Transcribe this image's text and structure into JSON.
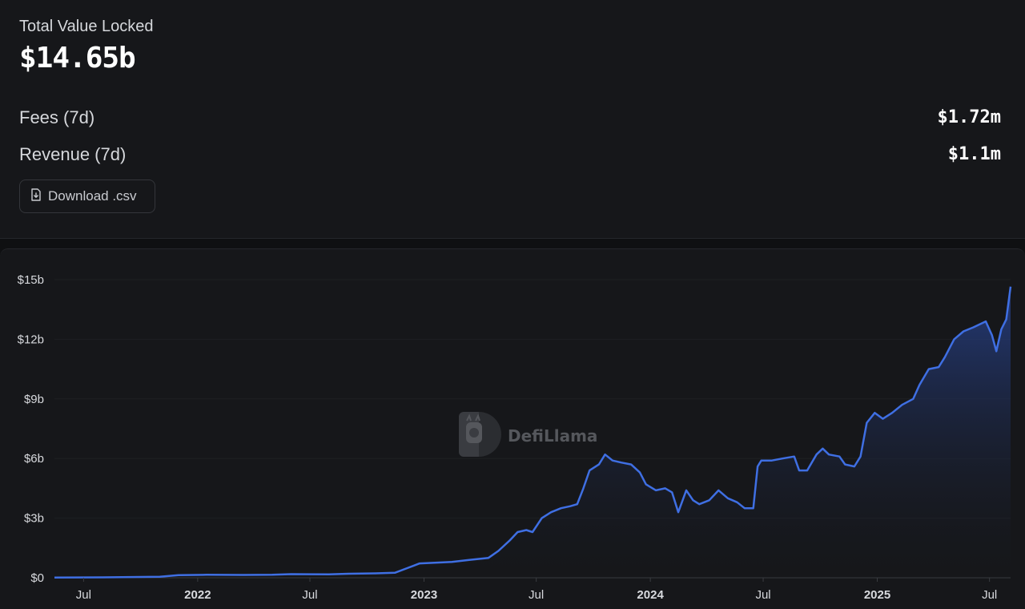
{
  "stats": {
    "tvl_label": "Total Value Locked",
    "tvl_value": "$14.65b",
    "fees_label": "Fees (7d)",
    "fees_value": "$1.72m",
    "revenue_label": "Revenue (7d)",
    "revenue_value": "$1.1m"
  },
  "download": {
    "label": "Download .csv",
    "icon": "file-download-icon"
  },
  "watermark": {
    "text": "DefiLlama"
  },
  "colors": {
    "line": "#3f6fe3",
    "fill_top": "#27418a",
    "fill_bottom": "#16171a",
    "background": "#16171a"
  },
  "chart_data": {
    "type": "area",
    "title": "",
    "xlabel": "",
    "ylabel": "",
    "ylim": [
      0,
      15
    ],
    "y_unit": "billion USD",
    "y_ticks": [
      {
        "value": 0,
        "label": "$0"
      },
      {
        "value": 3,
        "label": "$3b"
      },
      {
        "value": 6,
        "label": "$6b"
      },
      {
        "value": 9,
        "label": "$9b"
      },
      {
        "value": 12,
        "label": "$12b"
      },
      {
        "value": 15,
        "label": "$15b"
      }
    ],
    "x_ticks": [
      {
        "date": "2021-07-01",
        "label": "Jul",
        "major": false
      },
      {
        "date": "2022-01-01",
        "label": "2022",
        "major": true
      },
      {
        "date": "2022-07-01",
        "label": "Jul",
        "major": false
      },
      {
        "date": "2023-01-01",
        "label": "2023",
        "major": true
      },
      {
        "date": "2023-07-01",
        "label": "Jul",
        "major": false
      },
      {
        "date": "2024-01-01",
        "label": "2024",
        "major": true
      },
      {
        "date": "2024-07-01",
        "label": "Jul",
        "major": false
      },
      {
        "date": "2025-01-01",
        "label": "2025",
        "major": true
      },
      {
        "date": "2025-07-01",
        "label": "Jul",
        "major": false
      }
    ],
    "grid": true,
    "legend": "none",
    "series": [
      {
        "points": [
          [
            "2021-05-15",
            0.01
          ],
          [
            "2021-08-01",
            0.02
          ],
          [
            "2021-11-01",
            0.05
          ],
          [
            "2021-12-01",
            0.13
          ],
          [
            "2022-01-15",
            0.15
          ],
          [
            "2022-03-15",
            0.14
          ],
          [
            "2022-05-01",
            0.15
          ],
          [
            "2022-06-01",
            0.18
          ],
          [
            "2022-08-01",
            0.17
          ],
          [
            "2022-09-01",
            0.2
          ],
          [
            "2022-10-15",
            0.22
          ],
          [
            "2022-11-15",
            0.25
          ],
          [
            "2022-12-15",
            0.6
          ],
          [
            "2022-12-25",
            0.72
          ],
          [
            "2023-01-15",
            0.75
          ],
          [
            "2023-02-15",
            0.8
          ],
          [
            "2023-03-15",
            0.9
          ],
          [
            "2023-04-15",
            1.0
          ],
          [
            "2023-05-01",
            1.35
          ],
          [
            "2023-05-20",
            1.9
          ],
          [
            "2023-06-01",
            2.3
          ],
          [
            "2023-06-15",
            2.4
          ],
          [
            "2023-06-25",
            2.3
          ],
          [
            "2023-07-10",
            3.0
          ],
          [
            "2023-07-25",
            3.3
          ],
          [
            "2023-08-10",
            3.5
          ],
          [
            "2023-08-25",
            3.6
          ],
          [
            "2023-09-05",
            3.7
          ],
          [
            "2023-09-15",
            4.5
          ],
          [
            "2023-09-25",
            5.4
          ],
          [
            "2023-10-10",
            5.7
          ],
          [
            "2023-10-20",
            6.2
          ],
          [
            "2023-11-01",
            5.9
          ],
          [
            "2023-11-15",
            5.8
          ],
          [
            "2023-12-01",
            5.7
          ],
          [
            "2023-12-15",
            5.3
          ],
          [
            "2023-12-25",
            4.7
          ],
          [
            "2024-01-10",
            4.4
          ],
          [
            "2024-01-25",
            4.5
          ],
          [
            "2024-02-05",
            4.3
          ],
          [
            "2024-02-15",
            3.3
          ],
          [
            "2024-02-28",
            4.4
          ],
          [
            "2024-03-10",
            3.9
          ],
          [
            "2024-03-20",
            3.7
          ],
          [
            "2024-04-05",
            3.9
          ],
          [
            "2024-04-20",
            4.4
          ],
          [
            "2024-05-05",
            4.0
          ],
          [
            "2024-05-20",
            3.8
          ],
          [
            "2024-06-01",
            3.5
          ],
          [
            "2024-06-15",
            3.5
          ],
          [
            "2024-06-22",
            5.6
          ],
          [
            "2024-06-28",
            5.9
          ],
          [
            "2024-07-15",
            5.9
          ],
          [
            "2024-08-01",
            6.0
          ],
          [
            "2024-08-20",
            6.1
          ],
          [
            "2024-08-28",
            5.4
          ],
          [
            "2024-09-10",
            5.4
          ],
          [
            "2024-09-25",
            6.2
          ],
          [
            "2024-10-05",
            6.5
          ],
          [
            "2024-10-15",
            6.2
          ],
          [
            "2024-11-01",
            6.1
          ],
          [
            "2024-11-10",
            5.7
          ],
          [
            "2024-11-25",
            5.6
          ],
          [
            "2024-12-05",
            6.1
          ],
          [
            "2024-12-15",
            7.8
          ],
          [
            "2024-12-28",
            8.3
          ],
          [
            "2025-01-10",
            8.0
          ],
          [
            "2025-01-25",
            8.3
          ],
          [
            "2025-02-10",
            8.7
          ],
          [
            "2025-02-28",
            9.0
          ],
          [
            "2025-03-10",
            9.7
          ],
          [
            "2025-03-25",
            10.5
          ],
          [
            "2025-04-10",
            10.6
          ],
          [
            "2025-04-20",
            11.1
          ],
          [
            "2025-05-05",
            12.0
          ],
          [
            "2025-05-20",
            12.4
          ],
          [
            "2025-06-05",
            12.6
          ],
          [
            "2025-06-25",
            12.9
          ],
          [
            "2025-07-05",
            12.2
          ],
          [
            "2025-07-12",
            11.4
          ],
          [
            "2025-07-20",
            12.5
          ],
          [
            "2025-07-28",
            13.0
          ],
          [
            "2025-08-04",
            14.65
          ]
        ]
      }
    ]
  }
}
